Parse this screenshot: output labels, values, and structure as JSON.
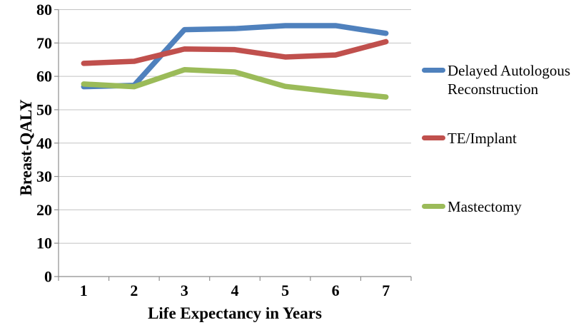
{
  "chart_data": {
    "type": "line",
    "title": "",
    "xlabel": "Life Expectancy in Years",
    "ylabel": "Breast-QALY",
    "x": [
      1,
      2,
      3,
      4,
      5,
      6,
      7
    ],
    "xticks": [
      "1",
      "2",
      "3",
      "4",
      "5",
      "6",
      "7"
    ],
    "yticks": [
      0,
      10,
      20,
      30,
      40,
      50,
      60,
      70,
      80
    ],
    "ylim": [
      0,
      80
    ],
    "grid": true,
    "legend_position": "right",
    "series": [
      {
        "name": "Delayed Autologous Reconstruction",
        "color": "#4F81BD",
        "values": [
          56.9,
          57.3,
          74.0,
          74.3,
          75.2,
          75.2,
          72.9
        ]
      },
      {
        "name": "TE/Implant",
        "color": "#C0504D",
        "values": [
          63.9,
          64.5,
          68.2,
          68.0,
          65.8,
          66.4,
          70.4
        ]
      },
      {
        "name": "Mastectomy",
        "color": "#9BBB59",
        "values": [
          57.7,
          56.9,
          62.0,
          61.3,
          57.0,
          55.3,
          53.8
        ]
      }
    ]
  },
  "style": {
    "gridline_color": "#C3C3C3",
    "axis_color": "#8E8E8E",
    "text_color": "#000000",
    "background": "#FFFFFF",
    "line_width": 7.5
  }
}
